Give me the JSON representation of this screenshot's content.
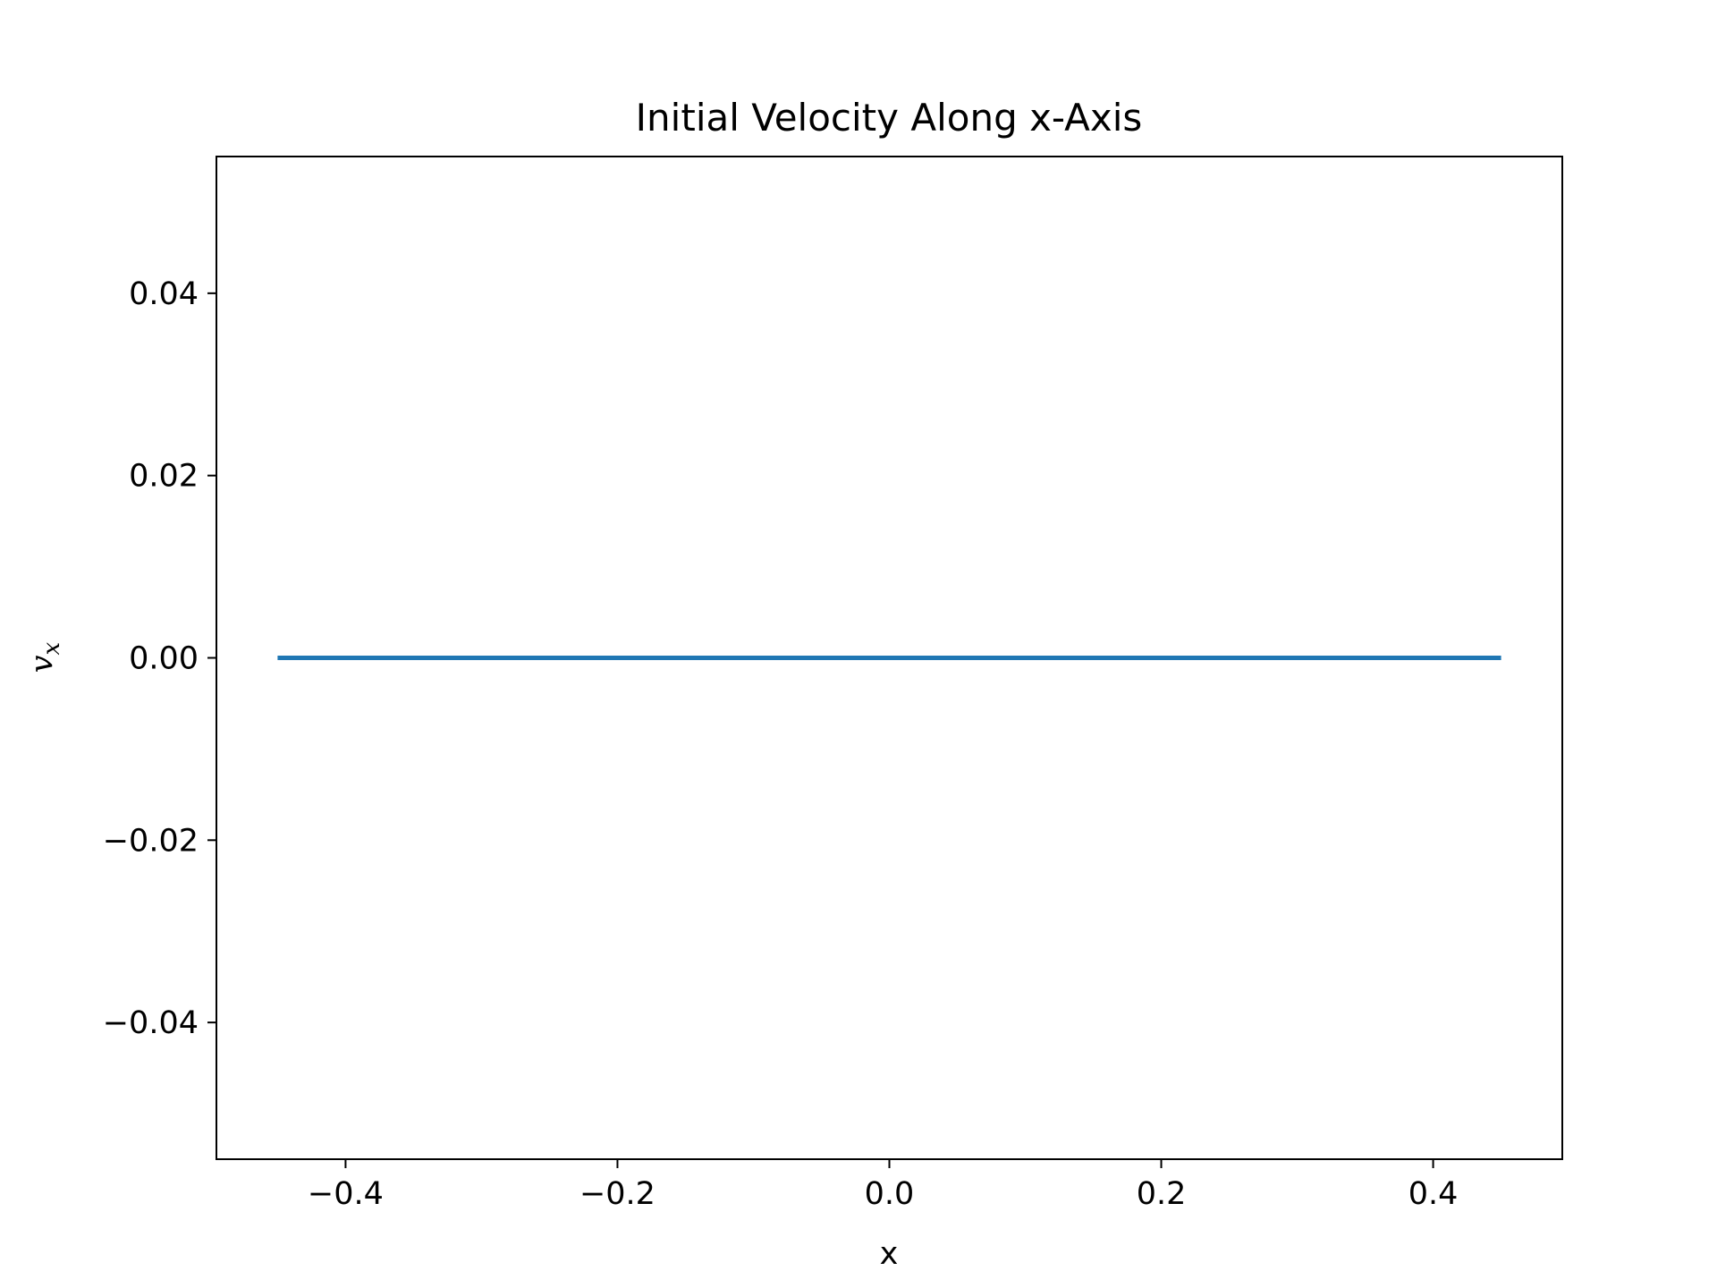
{
  "chart_data": {
    "type": "line",
    "title": "Initial Velocity Along x-Axis",
    "xlabel": "x",
    "ylabel": "v",
    "ylabel_subscript": "x",
    "xlim": [
      -0.495,
      0.495
    ],
    "ylim": [
      -0.055,
      0.055
    ],
    "xticks": [
      -0.4,
      -0.2,
      0.0,
      0.2,
      0.4
    ],
    "xtick_labels": [
      "−0.4",
      "−0.2",
      "0.0",
      "0.2",
      "0.4"
    ],
    "yticks": [
      -0.04,
      -0.02,
      0.0,
      0.02,
      0.04
    ],
    "ytick_labels": [
      "−0.04",
      "−0.02",
      "0.00",
      "0.02",
      "0.04"
    ],
    "grid": false,
    "series": [
      {
        "color": "#1f77b4",
        "x": [
          -0.45,
          0.45
        ],
        "y": [
          0.0,
          0.0
        ]
      }
    ]
  }
}
